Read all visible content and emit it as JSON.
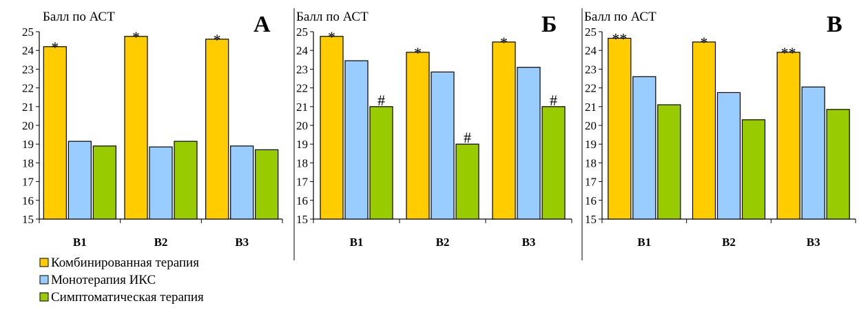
{
  "chart_data": [
    {
      "type": "bar",
      "title": "А",
      "ylabel": "Балл по АСТ",
      "ylim": [
        15,
        25
      ],
      "categories": [
        "B1",
        "B2",
        "B3"
      ],
      "series": [
        {
          "name": "Комбинированная терапия",
          "values": [
            24.2,
            24.75,
            24.6
          ],
          "color": "#FFCC00"
        },
        {
          "name": "Монотерапия ИКС",
          "values": [
            19.15,
            18.85,
            18.9
          ],
          "color": "#99CCFF"
        },
        {
          "name": "Симптоматическая терапия",
          "values": [
            18.9,
            19.15,
            18.7
          ],
          "color": "#99CC00"
        }
      ],
      "annotations": [
        {
          "series": 0,
          "category": 0,
          "text": "*"
        },
        {
          "series": 0,
          "category": 1,
          "text": "*"
        },
        {
          "series": 0,
          "category": 2,
          "text": "*"
        }
      ]
    },
    {
      "type": "bar",
      "title": "Б",
      "ylabel": "Балл по АСТ",
      "ylim": [
        15,
        25
      ],
      "categories": [
        "B1",
        "B2",
        "B3"
      ],
      "series": [
        {
          "name": "Комбинированная терапия",
          "values": [
            24.75,
            23.9,
            24.45
          ],
          "color": "#FFCC00"
        },
        {
          "name": "Монотерапия ИКС",
          "values": [
            23.45,
            22.85,
            23.1
          ],
          "color": "#99CCFF"
        },
        {
          "name": "Симптоматическая терапия",
          "values": [
            21.0,
            19.0,
            21.0
          ],
          "color": "#99CC00"
        }
      ],
      "annotations": [
        {
          "series": 0,
          "category": 0,
          "text": "*"
        },
        {
          "series": 0,
          "category": 1,
          "text": "*"
        },
        {
          "series": 0,
          "category": 2,
          "text": "*"
        },
        {
          "series": 2,
          "category": 0,
          "text": "#"
        },
        {
          "series": 2,
          "category": 1,
          "text": "#"
        },
        {
          "series": 2,
          "category": 2,
          "text": "#"
        }
      ]
    },
    {
      "type": "bar",
      "title": "В",
      "ylabel": "Балл по АСТ",
      "ylim": [
        15,
        25
      ],
      "categories": [
        "B1",
        "B2",
        "B3"
      ],
      "series": [
        {
          "name": "Комбинированная терапия",
          "values": [
            24.65,
            24.45,
            23.9
          ],
          "color": "#FFCC00"
        },
        {
          "name": "Монотерапия ИКС",
          "values": [
            22.6,
            21.75,
            22.05
          ],
          "color": "#99CCFF"
        },
        {
          "name": "Симптоматическая терапия",
          "values": [
            21.1,
            20.3,
            20.85
          ],
          "color": "#99CC00"
        }
      ],
      "annotations": [
        {
          "series": 0,
          "category": 0,
          "text": "**"
        },
        {
          "series": 0,
          "category": 1,
          "text": "*"
        },
        {
          "series": 0,
          "category": 2,
          "text": "**"
        }
      ]
    }
  ],
  "yticks": [
    15,
    16,
    17,
    18,
    19,
    20,
    21,
    22,
    23,
    24,
    25
  ],
  "legend": [
    {
      "label": "Комбинированная терапия",
      "color": "#FFCC00"
    },
    {
      "label": "Монотерапия ИКС",
      "color": "#99CCFF"
    },
    {
      "label": "Симптоматическая терапия",
      "color": "#99CC00"
    }
  ]
}
